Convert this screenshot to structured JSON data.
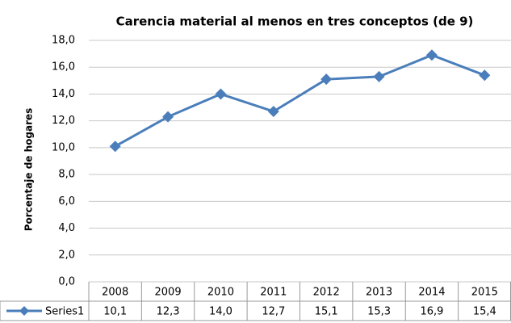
{
  "chart_data": {
    "type": "line",
    "title": "Carencia material al menos en tres conceptos (de 9)",
    "y_label": "Porcentaje de hogares",
    "categories": [
      "2008",
      "2009",
      "2010",
      "2011",
      "2012",
      "2013",
      "2014",
      "2015"
    ],
    "series": [
      {
        "name": "Series1",
        "color": "#4a7ebb",
        "values": [
          10.1,
          12.3,
          14.0,
          12.7,
          15.1,
          15.3,
          16.9,
          15.4
        ],
        "value_labels": [
          "10,1",
          "12,3",
          "14,0",
          "12,7",
          "15,1",
          "15,3",
          "16,9",
          "15,4"
        ]
      }
    ],
    "ylim": [
      0,
      18
    ],
    "yticks": [
      {
        "value": 0,
        "label": "0,0"
      },
      {
        "value": 2,
        "label": "2,0"
      },
      {
        "value": 4,
        "label": "4,0"
      },
      {
        "value": 6,
        "label": "6,0"
      },
      {
        "value": 8,
        "label": "8,0"
      },
      {
        "value": 10,
        "label": "10,0"
      },
      {
        "value": 12,
        "label": "12,0"
      },
      {
        "value": 14,
        "label": "14,0"
      },
      {
        "value": 16,
        "label": "16,0"
      },
      {
        "value": 18,
        "label": "18,0"
      }
    ],
    "grid": true
  }
}
